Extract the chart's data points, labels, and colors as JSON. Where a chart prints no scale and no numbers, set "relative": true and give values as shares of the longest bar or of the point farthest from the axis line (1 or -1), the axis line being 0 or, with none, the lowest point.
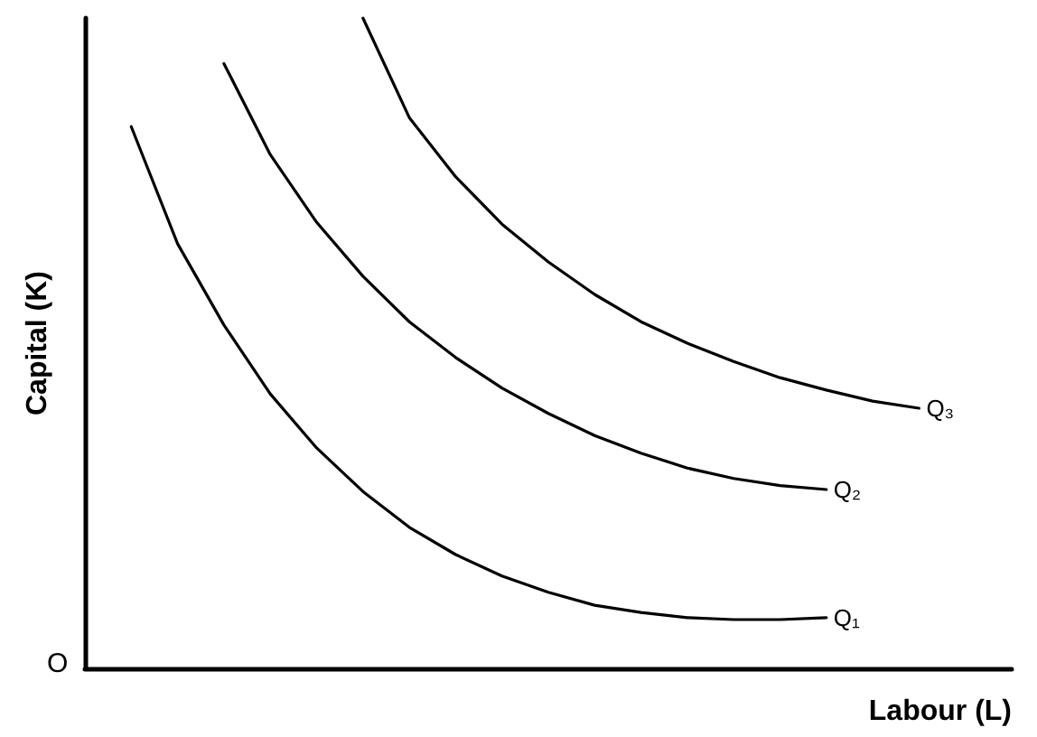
{
  "chart_data": {
    "type": "line",
    "relative": true,
    "xlabel": "Labour (L)",
    "ylabel": "Capital (K)",
    "annotations": [
      "O"
    ],
    "categories": [
      null,
      null,
      null,
      null,
      null,
      null,
      null,
      null,
      null,
      null,
      null,
      null,
      null,
      null,
      null,
      null,
      null,
      null,
      null,
      null,
      null
    ],
    "series": [
      {
        "name": "Q₁",
        "color": "#000000",
        "values": [
          null,
          0.833,
          0.653,
          0.528,
          0.422,
          0.339,
          0.272,
          0.217,
          0.175,
          0.142,
          0.117,
          0.097,
          0.086,
          0.078,
          0.075,
          0.075,
          0.078,
          null,
          null,
          null,
          null
        ]
      },
      {
        "name": "Q₂",
        "color": "#000000",
        "values": [
          null,
          null,
          null,
          0.93,
          0.79,
          0.686,
          0.603,
          0.533,
          0.478,
          0.431,
          0.392,
          0.358,
          0.331,
          0.308,
          0.292,
          0.281,
          0.275,
          null,
          null,
          null,
          null
        ]
      },
      {
        "name": "Q₃",
        "color": "#000000",
        "values": [
          null,
          null,
          null,
          null,
          null,
          null,
          1.0,
          0.847,
          0.756,
          0.683,
          0.625,
          0.575,
          0.533,
          0.5,
          0.472,
          0.447,
          0.428,
          0.411,
          0.4,
          null,
          null
        ]
      }
    ],
    "grid": false,
    "legend": false,
    "marker": "none",
    "line_style": "solid"
  }
}
